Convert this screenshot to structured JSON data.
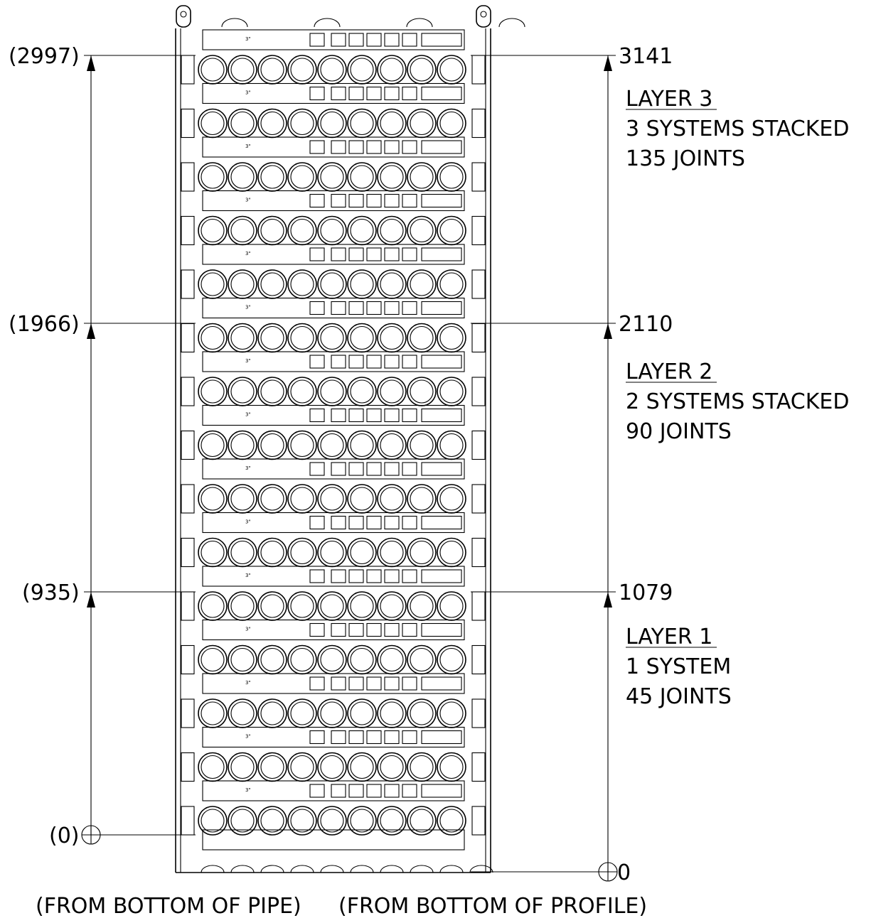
{
  "left_dimensions": {
    "labels": [
      "(2997)",
      "(1966)",
      "(935)",
      "(0)"
    ],
    "caption": "(FROM BOTTOM OF PIPE)"
  },
  "right_dimensions": {
    "labels": [
      "3141",
      "2110",
      "1079",
      "0"
    ],
    "caption": "(FROM BOTTOM OF PROFILE)"
  },
  "layers": [
    {
      "title": "LAYER 3",
      "line1": "3 SYSTEMS STACKED",
      "line2": "135 JOINTS"
    },
    {
      "title": "LAYER 2",
      "line1": "2 SYSTEMS STACKED",
      "line2": "90 JOINTS"
    },
    {
      "title": "LAYER 1",
      "line1": "1 SYSTEM",
      "line2": "45 JOINTS"
    }
  ],
  "stack": {
    "rows_of_pipes": 15,
    "pipes_per_row": 9
  }
}
